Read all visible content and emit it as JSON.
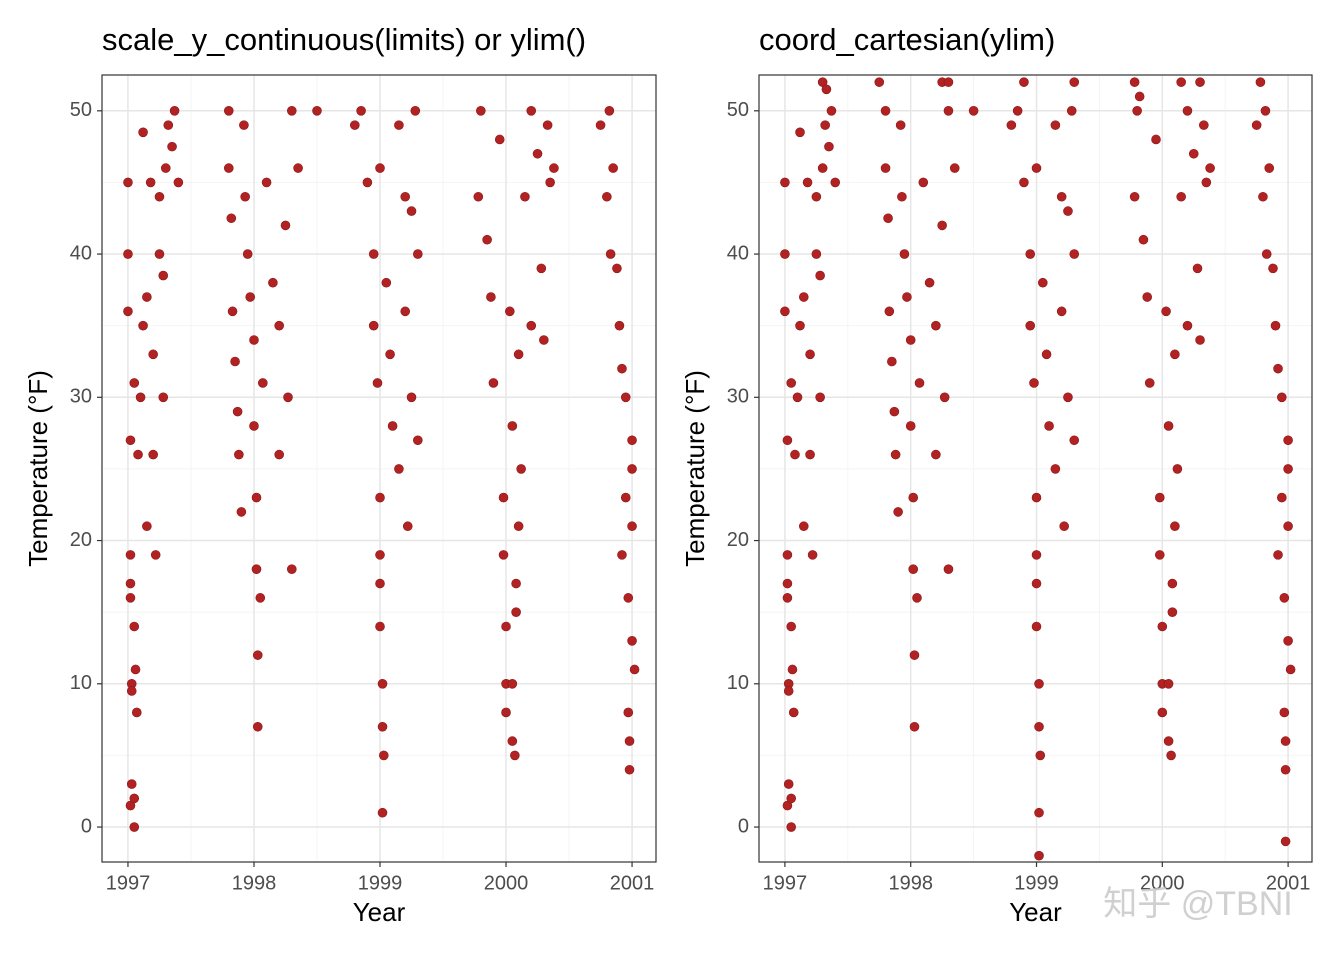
{
  "chart_data": [
    {
      "type": "scatter",
      "title": "scale_y_continuous(limits) or ylim()",
      "x_label": "Year",
      "y_label": "Temperature (°F)",
      "xlim": [
        1996.794,
        2001.19
      ],
      "ylim": [
        -2.44,
        52.5
      ],
      "xticks": [
        1997,
        1998,
        1999,
        2000,
        2001
      ],
      "yticks": [
        0,
        10,
        20,
        30,
        40,
        50
      ],
      "grid": true,
      "color": "#b22222",
      "x": [
        1997.0,
        1997.0,
        1997.0,
        1997.02,
        1997.02,
        1997.02,
        1997.02,
        1997.03,
        1997.03,
        1997.03,
        1997.02,
        1997.05,
        1997.05,
        1997.05,
        1997.06,
        1997.07,
        1997.05,
        1997.08,
        1997.1,
        1997.12,
        1997.12,
        1997.15,
        1997.15,
        1997.18,
        1997.2,
        1997.2,
        1997.22,
        1997.25,
        1997.25,
        1997.28,
        1997.28,
        1997.3,
        1997.32,
        1997.35,
        1997.37,
        1997.4,
        1997.8,
        1997.8,
        1997.82,
        1997.83,
        1997.85,
        1997.87,
        1997.88,
        1997.9,
        1997.92,
        1997.93,
        1997.95,
        1997.97,
        1998.0,
        1998.0,
        1998.02,
        1998.02,
        1998.03,
        1998.03,
        1998.05,
        1998.07,
        1998.1,
        1998.15,
        1998.2,
        1998.2,
        1998.25,
        1998.3,
        1998.3,
        1998.35,
        1998.5,
        1998.27,
        1998.8,
        1998.85,
        1998.9,
        1998.95,
        1998.95,
        1998.98,
        1999.0,
        1999.0,
        1999.0,
        1999.0,
        1999.0,
        1999.02,
        1999.02,
        1999.03,
        1999.02,
        1999.05,
        1999.08,
        1999.1,
        1999.15,
        1999.15,
        1999.2,
        1999.2,
        1999.22,
        1999.25,
        1999.25,
        1999.28,
        1999.3,
        1999.3,
        1999.78,
        1999.8,
        1999.85,
        1999.88,
        1999.9,
        1999.95,
        1999.98,
        1999.98,
        2000.0,
        2000.0,
        2000.0,
        2000.03,
        2000.05,
        2000.05,
        2000.05,
        2000.07,
        2000.08,
        2000.08,
        2000.1,
        2000.1,
        2000.12,
        2000.15,
        2000.2,
        2000.2,
        2000.25,
        2000.28,
        2000.3,
        2000.33,
        2000.35,
        2000.38,
        2000.75,
        2000.8,
        2000.82,
        2000.83,
        2000.85,
        2000.88,
        2000.9,
        2000.92,
        2000.92,
        2000.95,
        2000.95,
        2000.97,
        2000.97,
        2000.98,
        2000.98,
        2001.0,
        2001.0,
        2001.0,
        2001.02,
        2001.0
      ],
      "values": [
        45,
        40,
        36,
        27,
        19,
        17,
        16,
        10,
        9.5,
        3,
        1.5,
        0,
        2,
        14,
        11,
        8,
        31,
        26,
        30,
        48.5,
        35,
        37,
        21,
        45,
        33,
        26,
        19,
        44,
        40,
        38.5,
        30,
        46,
        49,
        47.5,
        50,
        45,
        50,
        46,
        42.5,
        36,
        32.5,
        29,
        26,
        22,
        49,
        44,
        40,
        37,
        34,
        28,
        23,
        18,
        12,
        7,
        16,
        31,
        45,
        38,
        35,
        26,
        42,
        18,
        50,
        46,
        50,
        30,
        49,
        50,
        45,
        40,
        35,
        31,
        46,
        23,
        19,
        17,
        14,
        10,
        7,
        5,
        1,
        38,
        33,
        28,
        49,
        25,
        44,
        36,
        21,
        43,
        30,
        50,
        40,
        27,
        44,
        50,
        41,
        37,
        31,
        48,
        23,
        19,
        14,
        10,
        8,
        36,
        28,
        10,
        6,
        5,
        17,
        15,
        33,
        21,
        25,
        44,
        35,
        50,
        47,
        39,
        34,
        49,
        45,
        46,
        49,
        44,
        50,
        40,
        46,
        39,
        35,
        32,
        19,
        30,
        23,
        16,
        8,
        6,
        4,
        25,
        21,
        13,
        11,
        27
      ]
    },
    {
      "type": "scatter",
      "title": "coord_cartesian(ylim)",
      "x_label": "Year",
      "y_label": "Temperature (°F)",
      "xlim": [
        1996.794,
        2001.19
      ],
      "ylim": [
        -2.44,
        52.5
      ],
      "xticks": [
        1997,
        1998,
        1999,
        2000,
        2001
      ],
      "yticks": [
        0,
        10,
        20,
        30,
        40,
        50
      ],
      "grid": true,
      "color": "#b22222",
      "x": [
        1997.0,
        1997.0,
        1997.0,
        1997.02,
        1997.02,
        1997.02,
        1997.02,
        1997.03,
        1997.03,
        1997.03,
        1997.02,
        1997.05,
        1997.05,
        1997.05,
        1997.06,
        1997.07,
        1997.05,
        1997.08,
        1997.1,
        1997.12,
        1997.12,
        1997.15,
        1997.15,
        1997.18,
        1997.2,
        1997.2,
        1997.22,
        1997.25,
        1997.25,
        1997.28,
        1997.28,
        1997.3,
        1997.32,
        1997.35,
        1997.37,
        1997.4,
        1997.8,
        1997.8,
        1997.82,
        1997.83,
        1997.85,
        1997.87,
        1997.88,
        1997.9,
        1997.92,
        1997.93,
        1997.95,
        1997.97,
        1998.0,
        1998.0,
        1998.02,
        1998.02,
        1998.03,
        1998.03,
        1998.05,
        1998.07,
        1998.1,
        1998.15,
        1998.2,
        1998.2,
        1998.25,
        1998.3,
        1998.3,
        1998.35,
        1998.5,
        1998.27,
        1998.8,
        1998.85,
        1998.9,
        1998.95,
        1998.95,
        1998.98,
        1999.0,
        1999.0,
        1999.0,
        1999.0,
        1999.0,
        1999.02,
        1999.02,
        1999.03,
        1999.02,
        1999.05,
        1999.08,
        1999.1,
        1999.15,
        1999.15,
        1999.2,
        1999.2,
        1999.22,
        1999.25,
        1999.25,
        1999.28,
        1999.3,
        1999.3,
        1999.78,
        1999.8,
        1999.85,
        1999.88,
        1999.9,
        1999.95,
        1999.98,
        1999.98,
        2000.0,
        2000.0,
        2000.0,
        2000.03,
        2000.05,
        2000.05,
        2000.05,
        2000.07,
        2000.08,
        2000.08,
        2000.1,
        2000.1,
        2000.12,
        2000.15,
        2000.2,
        2000.2,
        2000.25,
        2000.28,
        2000.3,
        2000.33,
        2000.35,
        2000.38,
        2000.75,
        2000.8,
        2000.82,
        2000.83,
        2000.85,
        2000.88,
        2000.9,
        2000.92,
        2000.92,
        2000.95,
        2000.95,
        2000.97,
        2000.97,
        2000.98,
        2000.98,
        2001.0,
        2001.0,
        2001.0,
        2001.02,
        2001.0,
        1997.3,
        1997.33,
        1997.75,
        1998.25,
        1998.3,
        1998.9,
        1999.3,
        1999.78,
        1999.82,
        2000.15,
        2000.3,
        2000.78,
        1999.02,
        2000.98
      ],
      "values": [
        45,
        40,
        36,
        27,
        19,
        17,
        16,
        10,
        9.5,
        3,
        1.5,
        0,
        2,
        14,
        11,
        8,
        31,
        26,
        30,
        48.5,
        35,
        37,
        21,
        45,
        33,
        26,
        19,
        44,
        40,
        38.5,
        30,
        46,
        49,
        47.5,
        50,
        45,
        50,
        46,
        42.5,
        36,
        32.5,
        29,
        26,
        22,
        49,
        44,
        40,
        37,
        34,
        28,
        23,
        18,
        12,
        7,
        16,
        31,
        45,
        38,
        35,
        26,
        42,
        18,
        50,
        46,
        50,
        30,
        49,
        50,
        45,
        40,
        35,
        31,
        46,
        23,
        19,
        17,
        14,
        10,
        7,
        5,
        1,
        38,
        33,
        28,
        49,
        25,
        44,
        36,
        21,
        43,
        30,
        50,
        40,
        27,
        44,
        50,
        41,
        37,
        31,
        48,
        23,
        19,
        14,
        10,
        8,
        36,
        28,
        10,
        6,
        5,
        17,
        15,
        33,
        21,
        25,
        44,
        35,
        50,
        47,
        39,
        34,
        49,
        45,
        46,
        49,
        44,
        50,
        40,
        46,
        39,
        35,
        32,
        19,
        30,
        23,
        16,
        8,
        6,
        4,
        25,
        21,
        13,
        11,
        27,
        52,
        51.5,
        52,
        52,
        52,
        52,
        52,
        52,
        51,
        52,
        52,
        52,
        -2,
        -1
      ]
    }
  ],
  "watermark": "知乎 @TBNI"
}
